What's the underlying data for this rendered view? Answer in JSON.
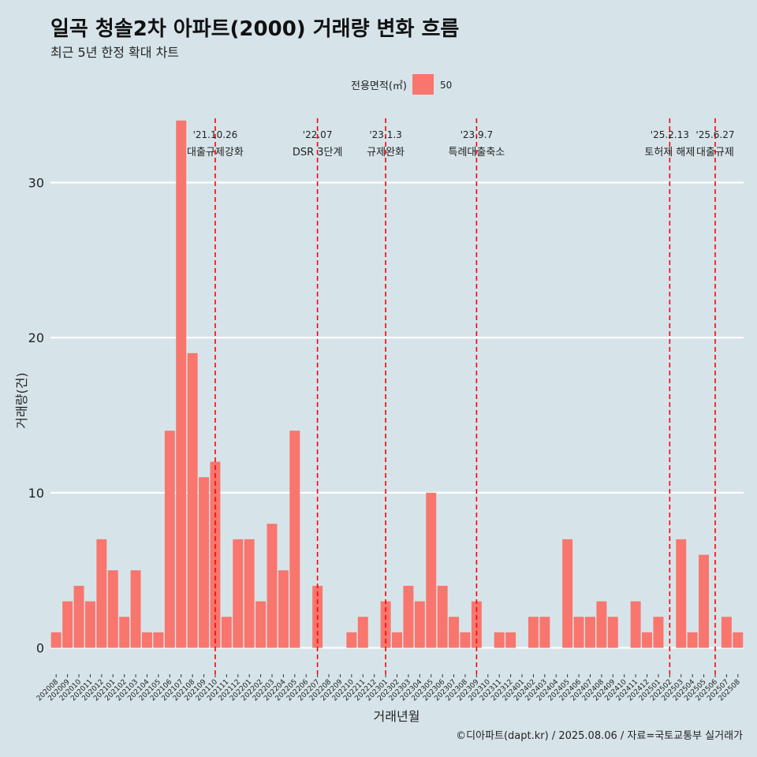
{
  "title": "일곡 청솔2차 아파트(2000) 거래량 변화 흐름",
  "subtitle": "최근 5년 한정 확대 차트",
  "caption": "©디아파트(dapt.kr) / 2025.08.06 / 자료=국토교통부 실거래가",
  "chart_data": {
    "type": "bar",
    "xlabel": "거래년월",
    "ylabel": "거래량(건)",
    "ylim": [
      -1.7,
      34.5
    ],
    "yticks": [
      0,
      10,
      20,
      30
    ],
    "legend": {
      "title": "전용면적(㎡)",
      "position": "top",
      "entries": [
        {
          "name": "50",
          "color": "#f8766d"
        }
      ]
    },
    "categories": [
      "202008",
      "202009",
      "202010",
      "202011",
      "202012",
      "202101",
      "202102",
      "202103",
      "202104",
      "202105",
      "202106",
      "202107",
      "202108",
      "202109",
      "202110",
      "202111",
      "202112",
      "202201",
      "202202",
      "202203",
      "202204",
      "202205",
      "202206",
      "202207",
      "202208",
      "202209",
      "202210",
      "202211",
      "202212",
      "202301",
      "202302",
      "202303",
      "202304",
      "202305",
      "202306",
      "202307",
      "202308",
      "202309",
      "202310",
      "202311",
      "202312",
      "202401",
      "202402",
      "202403",
      "202404",
      "202405",
      "202406",
      "202407",
      "202408",
      "202409",
      "202410",
      "202411",
      "202412",
      "202501",
      "202502",
      "202503",
      "202504",
      "202505",
      "202506",
      "202507",
      "202508"
    ],
    "series": [
      {
        "name": "50",
        "color": "#f8766d",
        "values": [
          1,
          3,
          4,
          3,
          7,
          5,
          2,
          5,
          1,
          1,
          14,
          34,
          19,
          11,
          12,
          2,
          7,
          7,
          3,
          8,
          5,
          14,
          0,
          4,
          0,
          0,
          1,
          2,
          0,
          3,
          1,
          4,
          3,
          10,
          4,
          2,
          1,
          3,
          0,
          1,
          1,
          0,
          2,
          2,
          0,
          7,
          2,
          2,
          3,
          2,
          0,
          3,
          1,
          2,
          0,
          7,
          1,
          6,
          0,
          2,
          1
        ]
      }
    ],
    "annotations": [
      {
        "x": "202110",
        "date": "'21.10.26",
        "label": "대출규제강화"
      },
      {
        "x": "202207",
        "date": "'22.07",
        "label": "DSR 3단계"
      },
      {
        "x": "202301",
        "date": "'23.1.3",
        "label": "규제완화"
      },
      {
        "x": "202309",
        "date": "'23.9.7",
        "label": "특례대출축소"
      },
      {
        "x": "202502",
        "date": "'25.2.13",
        "label": "토허제 해제"
      },
      {
        "x": "202506",
        "date": "'25.6.27",
        "label": "대출규제"
      }
    ]
  }
}
